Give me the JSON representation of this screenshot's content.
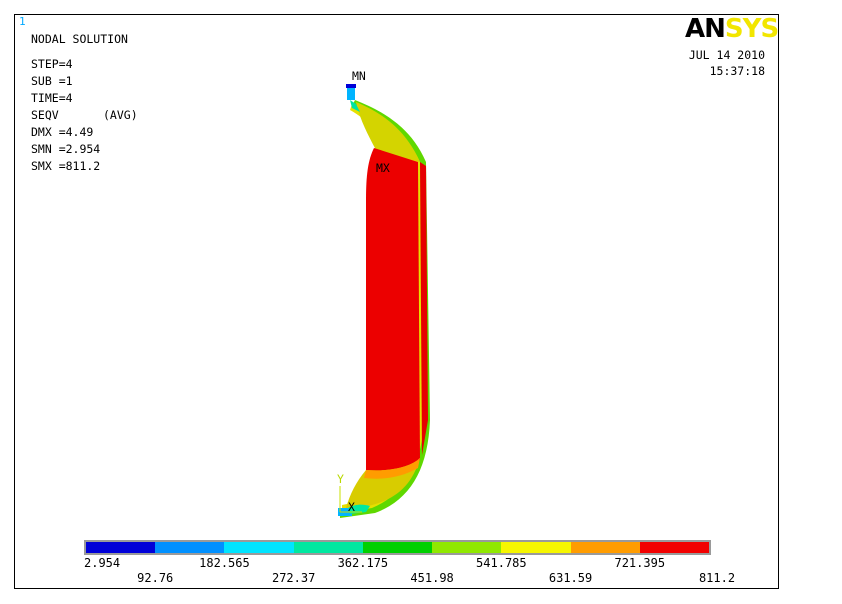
{
  "window_number": "1",
  "header": {
    "title": "NODAL SOLUTION",
    "step": "STEP=4",
    "sub": "SUB =1",
    "time": "TIME=4",
    "seqv": "SEQV",
    "avg": "(AVG)",
    "dmx": "DMX =4.49",
    "smn": "SMN =2.954",
    "smx": "SMX =811.2"
  },
  "logo": {
    "part1": "AN",
    "part2": "SYS",
    "color_part2": "#f2e600"
  },
  "date": {
    "day": "JUL 14 2010",
    "time": "15:37:18"
  },
  "markers": {
    "mn": "MN",
    "mx": "MX",
    "y_axis": "Y",
    "x_axis": "X"
  },
  "legend": {
    "colors": [
      "#0000d8",
      "#0090ff",
      "#00e4ff",
      "#00e8a0",
      "#00d000",
      "#90e800",
      "#f6f600",
      "#ff9c00",
      "#f20000"
    ],
    "ticks_top": [
      "2.954",
      "182.565",
      "362.175",
      "541.785",
      "721.395"
    ],
    "ticks_bottom": [
      "92.76",
      "272.37",
      "451.98",
      "631.59",
      "811.2"
    ]
  }
}
